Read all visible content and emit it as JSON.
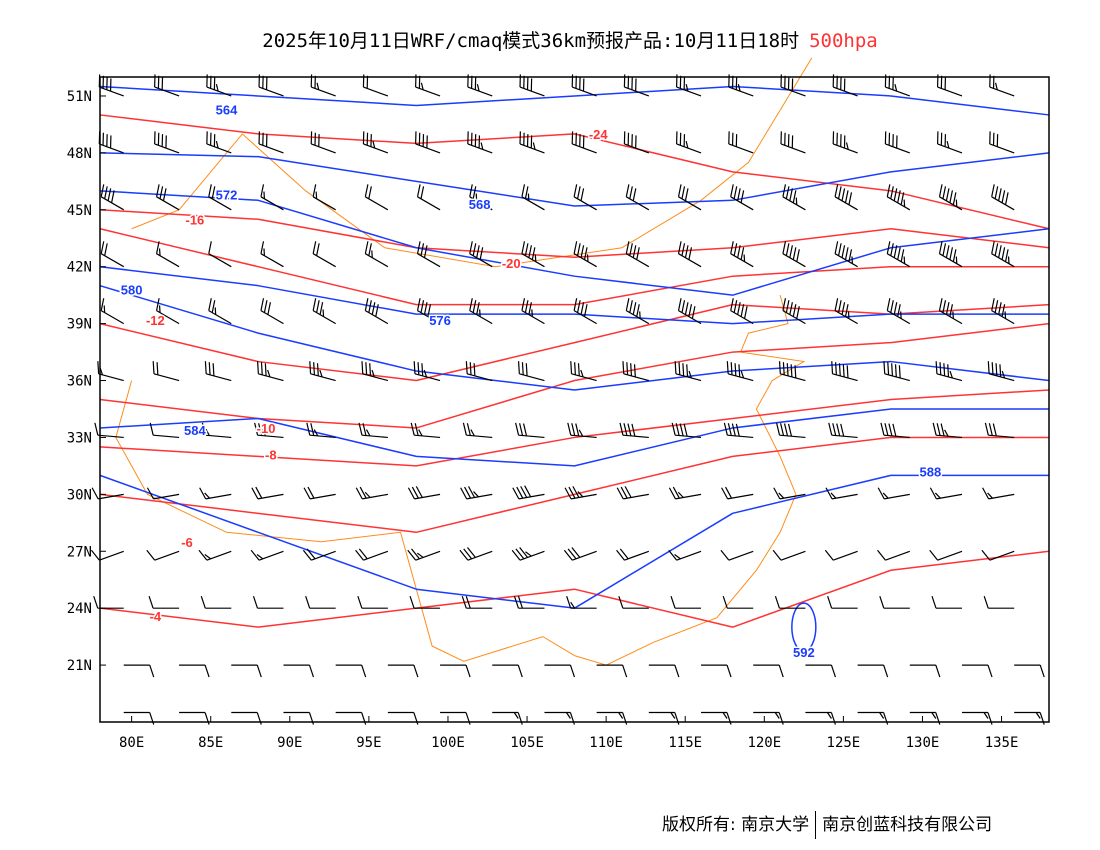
{
  "title": {
    "main": "2025年10月11日WRF/cmaq模式36km预报产品:10月11日18时",
    "level": "500hpa"
  },
  "footer": {
    "copyright": "版权所有: 南京大学",
    "company": "南京创蓝科技有限公司"
  },
  "colors": {
    "height": "#1a3cff",
    "temperature": "#ff3333",
    "border": "#ff8c1a",
    "wind": "#000000"
  },
  "map": {
    "lon_range": [
      78,
      138
    ],
    "lat_range": [
      18,
      52
    ],
    "lon_ticks": [
      "80E",
      "85E",
      "90E",
      "95E",
      "100E",
      "105E",
      "110E",
      "115E",
      "120E",
      "125E",
      "130E",
      "135E"
    ],
    "lon_tick_values": [
      80,
      85,
      90,
      95,
      100,
      105,
      110,
      115,
      120,
      125,
      130,
      135
    ],
    "lat_ticks": [
      "51N",
      "48N",
      "45N",
      "42N",
      "39N",
      "36N",
      "33N",
      "30N",
      "27N",
      "24N",
      "21N"
    ],
    "lat_tick_values": [
      51,
      48,
      45,
      42,
      39,
      36,
      33,
      30,
      27,
      24,
      21
    ]
  },
  "contour_lons": [
    78,
    88,
    98,
    108,
    118,
    128,
    138
  ],
  "height_contours": [
    {
      "label": "564",
      "lats": [
        51.5,
        51,
        50.5,
        51,
        51.5,
        51,
        50
      ],
      "label_lon": 86,
      "label_lat": 50.3
    },
    {
      "label": "568",
      "lats": [
        48,
        47.8,
        46.5,
        45.2,
        45.5,
        47,
        48
      ],
      "label_lon": 102,
      "label_lat": 45.3
    },
    {
      "label": "572",
      "lats": [
        46,
        45.5,
        43,
        41.5,
        40.5,
        43,
        44
      ],
      "label_lon": 86,
      "label_lat": 45.8
    },
    {
      "label": "576",
      "lats": [
        42,
        41,
        39.5,
        39.5,
        39,
        39.5,
        39.5
      ],
      "label_lon": 99.5,
      "label_lat": 39.2
    },
    {
      "label": "580",
      "lats": [
        41,
        38.5,
        36.5,
        35.5,
        36.5,
        37,
        36
      ],
      "label_lon": 80,
      "label_lat": 40.8
    },
    {
      "label": "584",
      "lats": [
        33.5,
        34,
        32,
        31.5,
        33.5,
        34.5,
        34.5
      ],
      "label_lon": 84,
      "label_lat": 33.4
    },
    {
      "label": "588",
      "lats": [
        31,
        28,
        25,
        24,
        29,
        31,
        31
      ],
      "label_lon": 130.5,
      "label_lat": 31.2
    },
    {
      "label": "592",
      "lats": [
        null,
        null,
        null,
        null,
        23,
        null,
        null
      ],
      "label_lon": 122.5,
      "label_lat": 21.7
    }
  ],
  "temperature_contours": [
    {
      "label": "-24",
      "lats": [
        50,
        49,
        48.5,
        49,
        47,
        46,
        44
      ],
      "label_lon": 109.5,
      "label_lat": 49
    },
    {
      "label": "-20",
      "lats": [
        45,
        44.5,
        43,
        42.5,
        43,
        44,
        43
      ],
      "label_lon": 104,
      "label_lat": 42.2
    },
    {
      "label": "-16",
      "lats": [
        44,
        42,
        40,
        40,
        41.5,
        42,
        42
      ],
      "label_lon": 84,
      "label_lat": 44.5
    },
    {
      "label": "-12",
      "lats": [
        39,
        37,
        36,
        38,
        40,
        39.5,
        40
      ],
      "label_lon": 81.5,
      "label_lat": 39.2
    },
    {
      "label": "-10",
      "lats": [
        35,
        34,
        33.5,
        36,
        37.5,
        38,
        39
      ],
      "label_lon": 88.5,
      "label_lat": 33.5
    },
    {
      "label": "-8",
      "lats": [
        32.5,
        32,
        31.5,
        33,
        34,
        35,
        35.5
      ],
      "label_lon": 88.8,
      "label_lat": 32.1
    },
    {
      "label": "-6",
      "lats": [
        30,
        29,
        28,
        30,
        32,
        33,
        33
      ],
      "label_lon": 83.5,
      "label_lat": 27.5
    },
    {
      "label": "-4",
      "lats": [
        24,
        23,
        24,
        25,
        23,
        26,
        27
      ],
      "label_lon": 81.5,
      "label_lat": 23.6
    }
  ],
  "wind_barbs": {
    "lons": [
      79.5,
      83,
      86.3,
      89.6,
      92.9,
      96.2,
      99.5,
      102.8,
      106.1,
      109.4,
      112.7,
      116,
      119.3,
      122.6,
      125.9,
      129.2,
      132.5,
      135.8
    ],
    "rows": [
      {
        "lat": 51,
        "dir": 290,
        "speeds": [
          40,
          30,
          35,
          30,
          25,
          20,
          25,
          35,
          40,
          40,
          40,
          35,
          35,
          40,
          40,
          35,
          30,
          25
        ]
      },
      {
        "lat": 48,
        "dir": 290,
        "speeds": [
          40,
          40,
          35,
          30,
          30,
          35,
          40,
          45,
          45,
          40,
          40,
          35,
          30,
          40,
          45,
          40,
          35,
          30
        ]
      },
      {
        "lat": 45,
        "dir": 300,
        "speeds": [
          40,
          30,
          20,
          15,
          15,
          20,
          20,
          25,
          25,
          30,
          30,
          30,
          40,
          45,
          50,
          55,
          55,
          50
        ]
      },
      {
        "lat": 42,
        "dir": 300,
        "speeds": [
          20,
          15,
          10,
          15,
          20,
          25,
          30,
          40,
          45,
          45,
          40,
          40,
          45,
          50,
          55,
          55,
          55,
          55
        ]
      },
      {
        "lat": 39,
        "dir": 300,
        "speeds": [
          15,
          15,
          25,
          30,
          35,
          40,
          40,
          35,
          35,
          40,
          45,
          50,
          50,
          50,
          45,
          45,
          45,
          45
        ]
      },
      {
        "lat": 36,
        "dir": 285,
        "speeds": [
          15,
          20,
          30,
          35,
          35,
          35,
          35,
          30,
          30,
          35,
          40,
          45,
          45,
          50,
          50,
          50,
          45,
          45
        ]
      },
      {
        "lat": 33,
        "dir": 275,
        "speeds": [
          10,
          10,
          15,
          25,
          25,
          25,
          25,
          25,
          30,
          35,
          40,
          40,
          40,
          40,
          40,
          40,
          35,
          30
        ]
      },
      {
        "lat": 30,
        "dir": 260,
        "speeds": [
          10,
          10,
          15,
          20,
          20,
          25,
          30,
          35,
          40,
          35,
          30,
          25,
          20,
          15,
          15,
          15,
          15,
          15
        ]
      },
      {
        "lat": 27,
        "dir": 250,
        "speeds": [
          10,
          10,
          15,
          15,
          20,
          20,
          25,
          30,
          35,
          30,
          20,
          15,
          10,
          10,
          10,
          10,
          10,
          10
        ]
      },
      {
        "lat": 24,
        "dir": 270,
        "speeds": [
          10,
          10,
          10,
          10,
          10,
          10,
          10,
          20,
          20,
          15,
          10,
          10,
          10,
          10,
          10,
          10,
          10,
          10
        ]
      },
      {
        "lat": 21,
        "dir": 90,
        "speeds": [
          10,
          10,
          10,
          10,
          10,
          10,
          10,
          10,
          10,
          10,
          10,
          10,
          10,
          10,
          10,
          10,
          10,
          10
        ]
      },
      {
        "lat": 18.5,
        "dir": 90,
        "speeds": [
          10,
          10,
          10,
          10,
          10,
          10,
          10,
          15,
          15,
          15,
          15,
          15,
          15,
          15,
          15,
          15,
          15,
          15
        ]
      }
    ]
  }
}
